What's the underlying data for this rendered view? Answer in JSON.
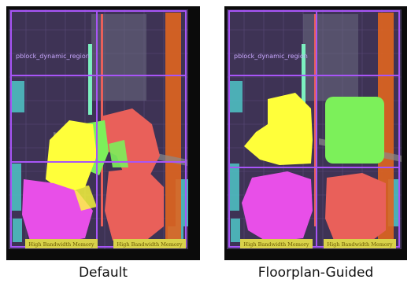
{
  "panels": [
    {
      "caption": "Default",
      "hbm_labels": [
        "High Bandwidth Memory",
        "High Bandwidth Memory"
      ],
      "region_labels": [
        "pblock_dynamic_region"
      ]
    },
    {
      "caption": "Floorplan-Guided",
      "hbm_labels": [
        "High Bandwidth Memory",
        "High Bandwidth Memory"
      ],
      "region_labels": [
        "pblock_dynamic_region"
      ]
    }
  ],
  "colors": {
    "background": "#0b0b0b",
    "fabric": "#3e3355",
    "region_outline": "#a855f7",
    "hbm_bar": "#d8d24a",
    "io_column": "#e0651f",
    "cyan_cells": "#4fc6c8",
    "yellow_cluster": "#ffff3a",
    "green_cluster": "#7cf05a",
    "red_cluster": "#e9605a",
    "magenta_cluster": "#e84fe8"
  }
}
